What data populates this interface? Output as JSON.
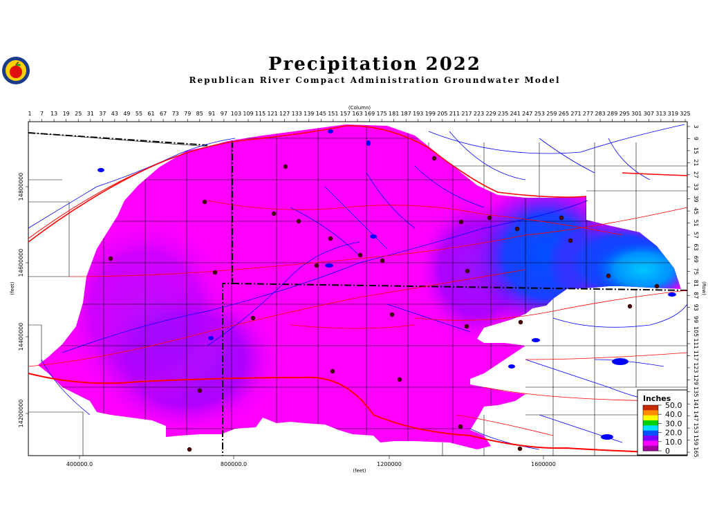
{
  "header": {
    "title": "Precipitation 2022",
    "subtitle": "Republican River Compact Administration Groundwater Model"
  },
  "axes": {
    "column_label": "(Column)",
    "row_label": "(Row)",
    "x_label": "(feet)",
    "y_label": "(feet)",
    "column_ticks": [
      "1",
      "7",
      "13",
      "19",
      "25",
      "31",
      "37",
      "43",
      "49",
      "55",
      "61",
      "67",
      "73",
      "79",
      "85",
      "91",
      "97",
      "103",
      "109",
      "115",
      "121",
      "127",
      "133",
      "139",
      "145",
      "151",
      "157",
      "163",
      "169",
      "175",
      "181",
      "187",
      "193",
      "199",
      "205",
      "211",
      "217",
      "223",
      "229",
      "235",
      "241",
      "247",
      "253",
      "259",
      "265",
      "271",
      "277",
      "283",
      "289",
      "295",
      "301",
      "307",
      "313",
      "319",
      "325"
    ],
    "row_ticks": [
      "3",
      "9",
      "15",
      "21",
      "27",
      "33",
      "39",
      "45",
      "51",
      "57",
      "63",
      "69",
      "75",
      "81",
      "87",
      "93",
      "99",
      "105",
      "111",
      "117",
      "123",
      "129",
      "135",
      "141",
      "147",
      "153",
      "159",
      "165"
    ],
    "x_ticks": [
      "400000.0",
      "800000.0",
      "1200000",
      "1600000"
    ],
    "y_ticks": [
      "14800000",
      "14600000",
      "14400000",
      "14200000"
    ]
  },
  "legend": {
    "title": "Inches",
    "entries": [
      "50.0",
      "40.0",
      "30.0",
      "20.0",
      "10.0",
      "0"
    ],
    "colors": [
      "#c82800",
      "#ff8c00",
      "#ffff00",
      "#00d000",
      "#00e0ff",
      "#0050ff",
      "#8000ff",
      "#ff00ff",
      "#a000a0"
    ]
  },
  "map_colors": {
    "magenta": "#ff00ff",
    "violet": "#b400ff",
    "blue": "#0050ff",
    "light_blue": "#00b4ff",
    "roads": "#ff0000",
    "rivers": "#0000ff"
  }
}
